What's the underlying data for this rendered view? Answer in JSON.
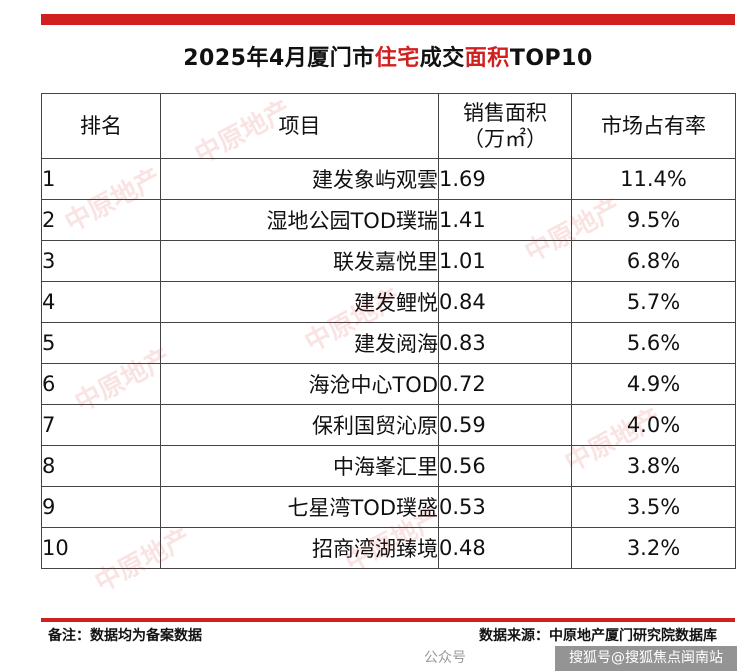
{
  "title": {
    "part1": "2025年4月厦门市",
    "highlight1": "住宅",
    "part2": "成交",
    "highlight2": "面积",
    "part3": "TOP10"
  },
  "table": {
    "headers": {
      "rank": "排名",
      "project": "项目",
      "area_line1": "销售面积",
      "area_line2": "（万㎡）",
      "share": "市场占有率"
    },
    "rows": [
      {
        "rank": "1",
        "name": "建发象屿观雲",
        "area": "1.69",
        "share": "11.4%"
      },
      {
        "rank": "2",
        "name": "湿地公园TOD璞瑞",
        "area": "1.41",
        "share": "9.5%"
      },
      {
        "rank": "3",
        "name": "联发嘉悦里",
        "area": "1.01",
        "share": "6.8%"
      },
      {
        "rank": "4",
        "name": "建发鲤悦",
        "area": "0.84",
        "share": "5.7%"
      },
      {
        "rank": "5",
        "name": "建发阅海",
        "area": "0.83",
        "share": "5.6%"
      },
      {
        "rank": "6",
        "name": "海沧中心TOD",
        "area": "0.72",
        "share": "4.9%"
      },
      {
        "rank": "7",
        "name": "保利国贸沁原",
        "area": "0.59",
        "share": "4.0%"
      },
      {
        "rank": "8",
        "name": "中海峯汇里",
        "area": "0.56",
        "share": "3.8%"
      },
      {
        "rank": "9",
        "name": "七星湾TOD璞盛",
        "area": "0.53",
        "share": "3.5%"
      },
      {
        "rank": "10",
        "name": "招商湾湖臻境",
        "area": "0.48",
        "share": "3.2%"
      }
    ]
  },
  "footer": {
    "note": "备注：数据均为备案数据",
    "source": "数据来源：中原地产厦门研究院数据库",
    "platform_faint": "公众号",
    "platform_badge": "搜狐号@搜狐焦点闽南站"
  },
  "watermark": "中原地产",
  "colors": {
    "accent": "#d0201f",
    "border": "#444444"
  }
}
